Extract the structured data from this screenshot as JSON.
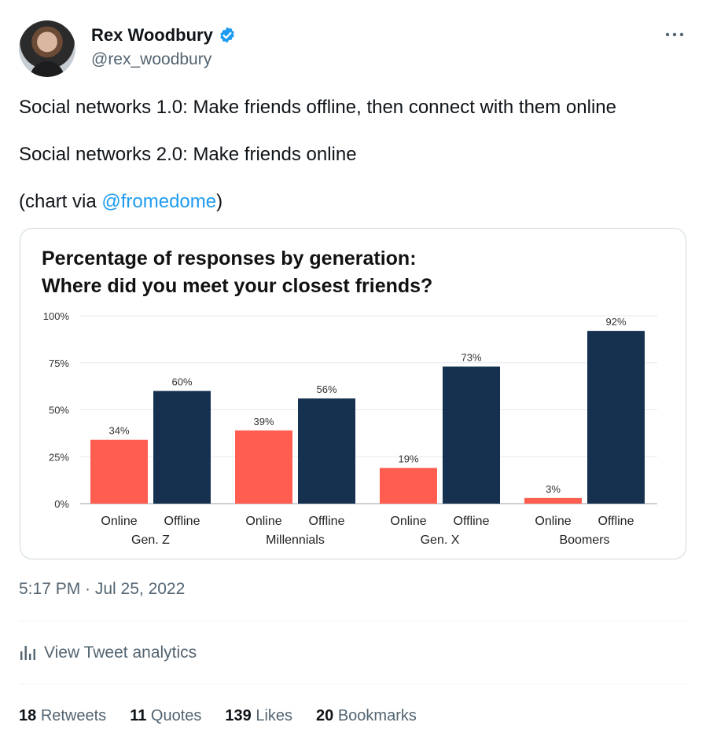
{
  "tweet": {
    "author_name": "Rex Woodbury",
    "handle": "@rex_woodbury",
    "line1": "Social networks 1.0: Make friends offline, then connect with them online",
    "line2": "Social networks 2.0: Make friends online",
    "line3_prefix": "(chart via ",
    "line3_mention": "@fromedome",
    "line3_suffix": ")",
    "timestamp": "5:17 PM · Jul 25, 2022",
    "analytics_label": "View Tweet analytics",
    "stats": [
      {
        "count": "18",
        "label": "Retweets"
      },
      {
        "count": "11",
        "label": "Quotes"
      },
      {
        "count": "139",
        "label": "Likes"
      },
      {
        "count": "20",
        "label": "Bookmarks"
      }
    ],
    "icons": {
      "verified": "verified-badge-icon",
      "more": "more-options-icon",
      "analytics": "analytics-bar-icon"
    }
  },
  "chart_data": {
    "type": "bar",
    "title_line1": "Percentage of responses by generation:",
    "title_line2": "Where did you meet your closest friends?",
    "ylim": [
      0,
      100
    ],
    "y_ticks": [
      "0%",
      "25%",
      "50%",
      "75%",
      "100%"
    ],
    "y_tick_values": [
      0,
      25,
      50,
      75,
      100
    ],
    "groups": [
      "Gen. Z",
      "Millennials",
      "Gen. X",
      "Boomers"
    ],
    "series": [
      {
        "name": "Online",
        "color": "#fe5d4f",
        "values": [
          34,
          39,
          19,
          3
        ],
        "labels": [
          "34%",
          "39%",
          "19%",
          "3%"
        ]
      },
      {
        "name": "Offline",
        "color": "#163150",
        "values": [
          60,
          56,
          73,
          92
        ],
        "labels": [
          "60%",
          "56%",
          "73%",
          "92%"
        ]
      }
    ],
    "grid": true
  }
}
